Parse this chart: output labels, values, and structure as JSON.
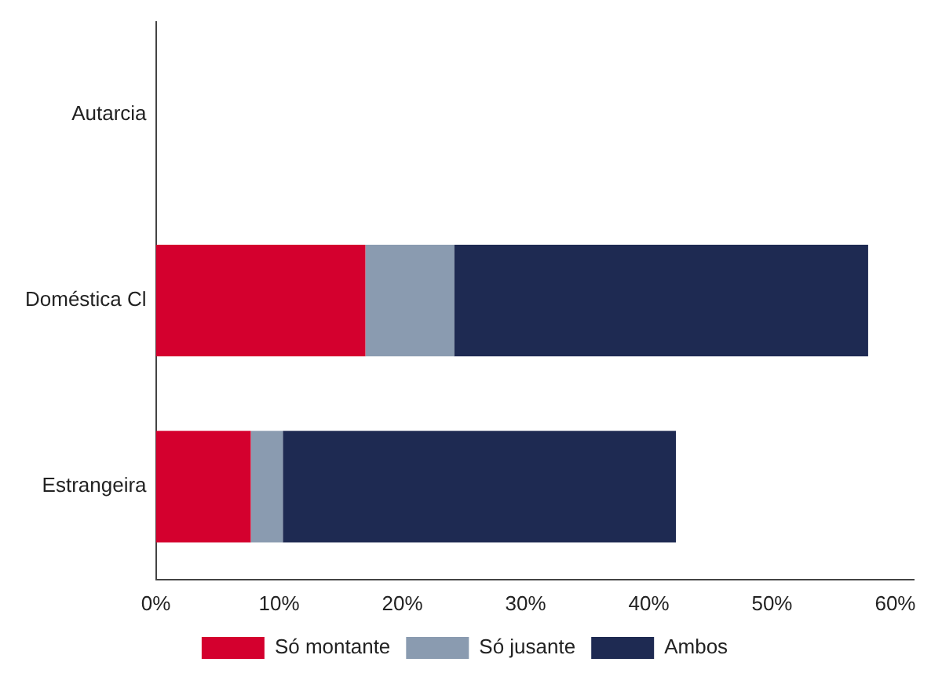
{
  "chart_data": {
    "type": "bar",
    "orientation": "horizontal",
    "stacked": true,
    "categories": [
      "Autarcia",
      "Doméstica Cl",
      "Estrangeira"
    ],
    "series": [
      {
        "name": "Só montante",
        "color": "#d4002e",
        "values": [
          0,
          17,
          7.7
        ]
      },
      {
        "name": "Só jusante",
        "color": "#8a9bb0",
        "values": [
          0,
          7.2,
          2.6
        ]
      },
      {
        "name": "Ambos",
        "color": "#1e2a52",
        "values": [
          0,
          33.6,
          31.9
        ]
      }
    ],
    "xlim": [
      0,
      61.5
    ],
    "xticks": [
      {
        "value": 0,
        "label": "0%"
      },
      {
        "value": 10,
        "label": "10%"
      },
      {
        "value": 20,
        "label": "20%"
      },
      {
        "value": 30,
        "label": "30%"
      },
      {
        "value": 40,
        "label": "40%"
      },
      {
        "value": 50,
        "label": "50%"
      },
      {
        "value": 60,
        "label": "60%"
      }
    ],
    "grid": false,
    "legend": "bottom"
  }
}
